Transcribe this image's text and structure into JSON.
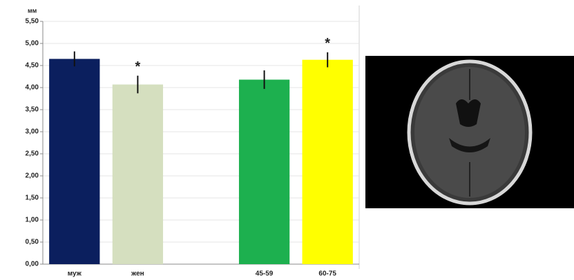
{
  "chart_data": {
    "type": "bar",
    "y_label": "мм",
    "categories": [
      "муж",
      "жен",
      null,
      "45-59",
      "60-75"
    ],
    "values": [
      4.65,
      4.07,
      null,
      4.18,
      4.63
    ],
    "errors": [
      0.17,
      0.2,
      null,
      0.21,
      0.17
    ],
    "colors": [
      "#0b1f5e",
      "#d5dfbf",
      null,
      "#1db04f",
      "#ffff00"
    ],
    "significance": [
      null,
      "*",
      null,
      null,
      "*"
    ],
    "ylim": [
      0,
      5.5
    ],
    "yticks": [
      {
        "value": 0,
        "label": "0,00"
      },
      {
        "value": 0.5,
        "label": "0,50"
      },
      {
        "value": 1,
        "label": "1,00"
      },
      {
        "value": 1.5,
        "label": "1,50"
      },
      {
        "value": 2,
        "label": "2,00"
      },
      {
        "value": 2.5,
        "label": "2,50"
      },
      {
        "value": 3,
        "label": "3,00"
      },
      {
        "value": 3.5,
        "label": "3,50"
      },
      {
        "value": 4,
        "label": "4,00"
      },
      {
        "value": 4.5,
        "label": "4,50"
      },
      {
        "value": 5,
        "label": "5,00"
      },
      {
        "value": 5.5,
        "label": "5,50"
      }
    ],
    "grid": true
  }
}
